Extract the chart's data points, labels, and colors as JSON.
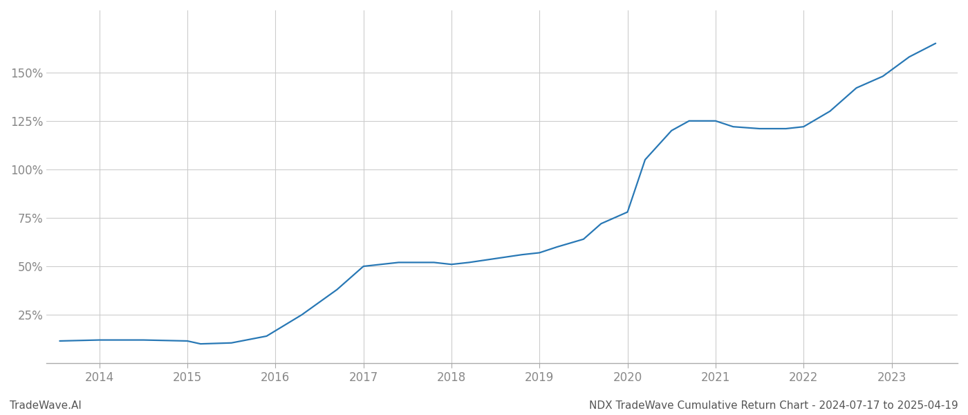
{
  "title": "NDX TradeWave Cumulative Return Chart - 2024-07-17 to 2025-04-19",
  "watermark": "TradeWave.AI",
  "line_color": "#2878b5",
  "background_color": "#ffffff",
  "grid_color": "#cccccc",
  "x_years": [
    2014,
    2015,
    2016,
    2017,
    2018,
    2019,
    2020,
    2021,
    2022,
    2023
  ],
  "data_x": [
    2013.55,
    2014.0,
    2014.5,
    2015.0,
    2015.15,
    2015.5,
    2015.9,
    2016.3,
    2016.7,
    2017.0,
    2017.4,
    2017.8,
    2018.0,
    2018.2,
    2018.5,
    2018.8,
    2019.0,
    2019.2,
    2019.5,
    2019.7,
    2019.85,
    2020.0,
    2020.2,
    2020.5,
    2020.7,
    2021.0,
    2021.2,
    2021.5,
    2021.8,
    2022.0,
    2022.3,
    2022.6,
    2022.9,
    2023.2,
    2023.5
  ],
  "data_y": [
    0.115,
    0.12,
    0.12,
    0.115,
    0.1,
    0.105,
    0.14,
    0.25,
    0.38,
    0.5,
    0.52,
    0.52,
    0.51,
    0.52,
    0.54,
    0.56,
    0.57,
    0.6,
    0.64,
    0.72,
    0.75,
    0.78,
    1.05,
    1.2,
    1.25,
    1.25,
    1.22,
    1.21,
    1.21,
    1.22,
    1.3,
    1.42,
    1.48,
    1.58,
    1.65
  ],
  "ylim_min": 0.0,
  "ylim_max": 1.82,
  "yticks": [
    0.25,
    0.5,
    0.75,
    1.0,
    1.25,
    1.5
  ],
  "ytick_labels": [
    "25%",
    "50%",
    "75%",
    "100%",
    "125%",
    "150%"
  ],
  "xlim_min": 2013.4,
  "xlim_max": 2023.75,
  "title_fontsize": 11,
  "watermark_fontsize": 11,
  "tick_fontsize": 12,
  "line_width": 1.6
}
